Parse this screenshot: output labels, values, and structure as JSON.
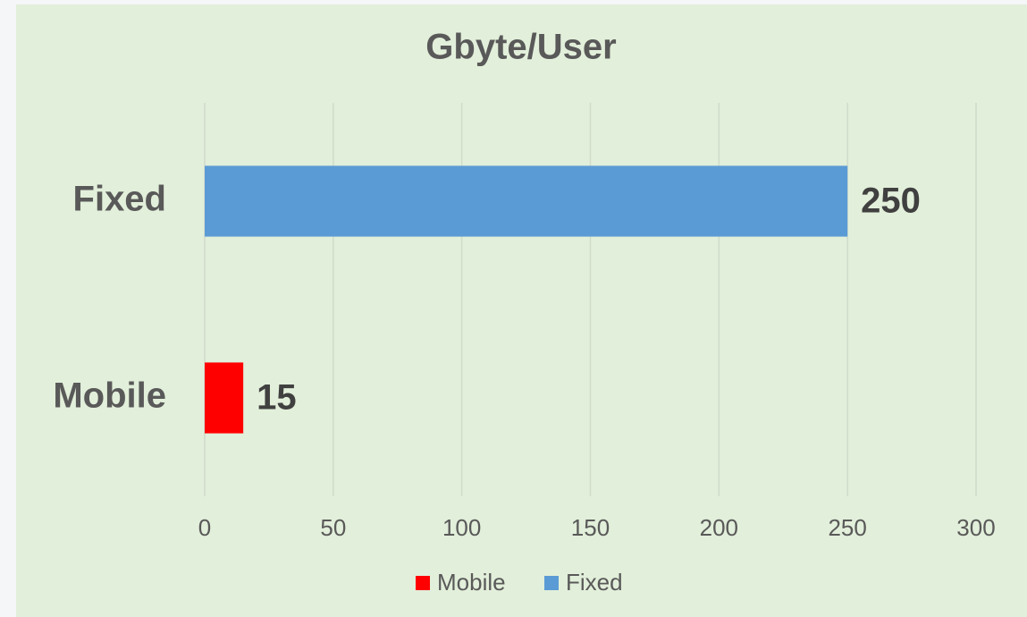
{
  "chart_data": {
    "type": "bar",
    "orientation": "horizontal",
    "title": "Gbyte/User",
    "categories": [
      "Mobile",
      "Fixed"
    ],
    "series": [
      {
        "name": "Mobile",
        "color": "#ff0000",
        "values": [
          15,
          null
        ]
      },
      {
        "name": "Fixed",
        "color": "#5b9bd5",
        "values": [
          null,
          250
        ]
      }
    ],
    "xlim": [
      0,
      300
    ],
    "xticks": [
      0,
      50,
      100,
      150,
      200,
      250,
      300
    ],
    "grid": true,
    "legend": "bottom"
  }
}
